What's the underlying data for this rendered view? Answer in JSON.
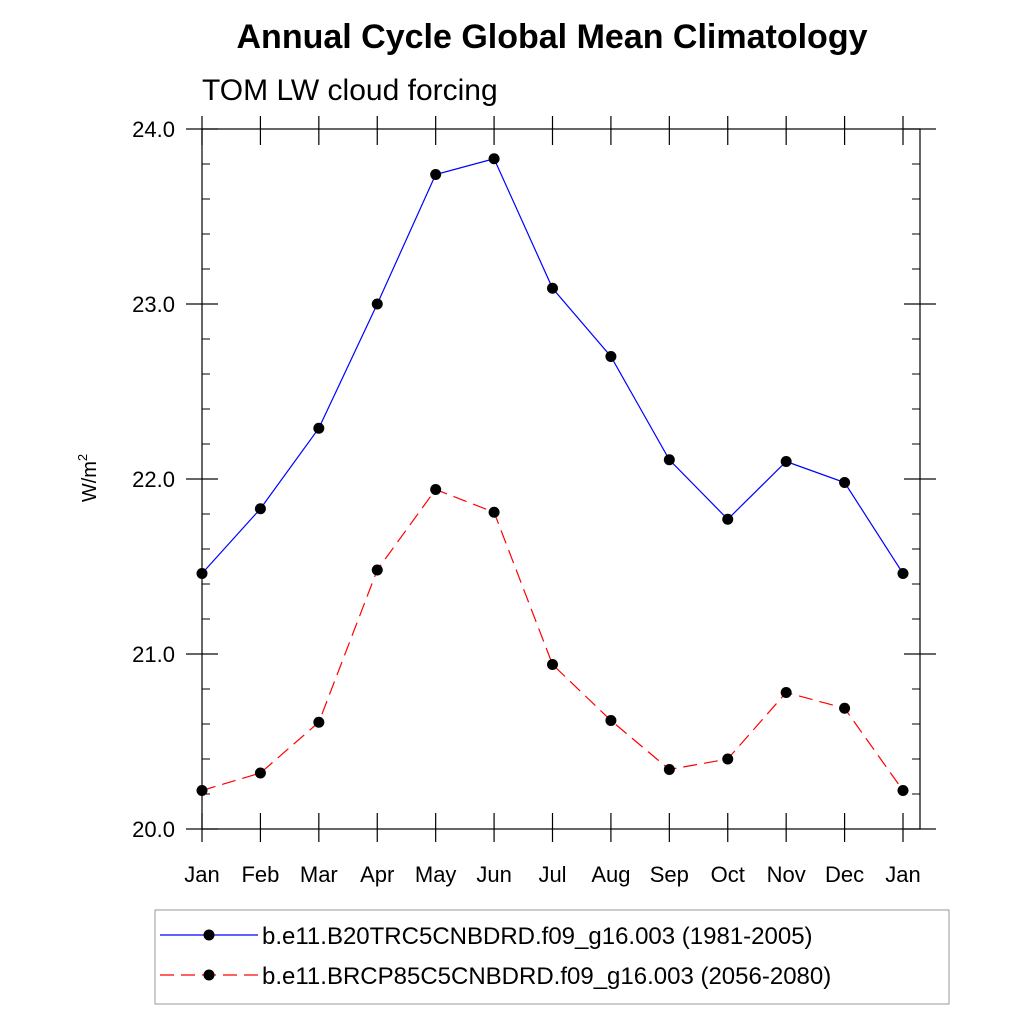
{
  "chart_data": {
    "type": "line",
    "title": "Annual Cycle Global Mean Climatology",
    "subtitle": "TOM LW cloud forcing",
    "ylabel": "W/m",
    "ylabel_sup": "2",
    "xlabel": "",
    "categories": [
      "Jan",
      "Feb",
      "Mar",
      "Apr",
      "May",
      "Jun",
      "Jul",
      "Aug",
      "Sep",
      "Oct",
      "Nov",
      "Dec",
      "Jan"
    ],
    "ylim": [
      20.0,
      24.0
    ],
    "yticks": [
      20.0,
      21.0,
      22.0,
      23.0,
      24.0
    ],
    "ytick_labels": [
      "20.0",
      "21.0",
      "22.0",
      "23.0",
      "24.0"
    ],
    "y_minor_step": 0.2,
    "grid": false,
    "series": [
      {
        "name": "b.e11.B20TRC5CNBDRD.f09_g16.003 (1981-2005)",
        "color": "#0000ff",
        "dash": "solid",
        "values": [
          21.46,
          21.83,
          22.29,
          23.0,
          23.74,
          23.83,
          23.09,
          22.7,
          22.11,
          21.77,
          22.1,
          21.98,
          21.46
        ]
      },
      {
        "name": "b.e11.BRCP85C5CNBDRD.f09_g16.003 (2056-2080)",
        "color": "#ff0000",
        "dash": "dashed",
        "values": [
          20.22,
          20.32,
          20.61,
          21.48,
          21.94,
          21.81,
          20.94,
          20.62,
          20.34,
          20.4,
          20.78,
          20.69,
          20.22
        ]
      }
    ],
    "legend_position": "bottom"
  }
}
